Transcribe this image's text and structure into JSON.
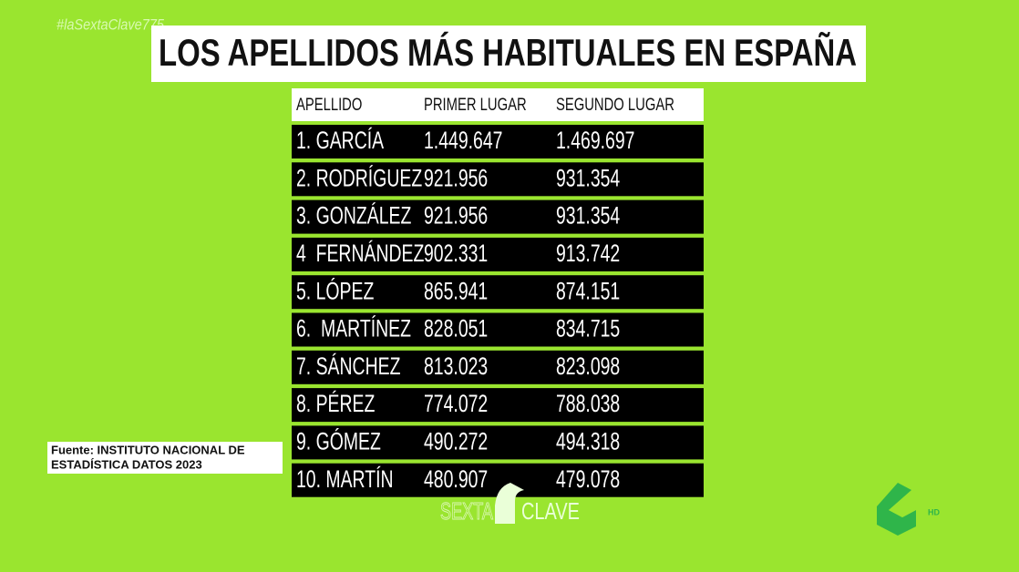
{
  "header": {
    "hashtag": "#laSextaClave775",
    "title": "LOS APELLIDOS MÁS HABITUALES EN ESPAÑA"
  },
  "table": {
    "columns": [
      "APELLIDO",
      "PRIMER LUGAR",
      "SEGUNDO LUGAR"
    ],
    "rows": [
      [
        "1. GARCÍA",
        "1.449.647",
        "1.469.697"
      ],
      [
        "2. RODRÍGUEZ",
        "921.956",
        "931.354"
      ],
      [
        "3. GONZÁLEZ",
        "921.956",
        "931.354"
      ],
      [
        "4  FERNÁNDEZ",
        "902.331",
        "913.742"
      ],
      [
        "5. LÓPEZ",
        "865.941",
        "874.151"
      ],
      [
        "6.  MARTÍNEZ",
        "828.051",
        "834.715"
      ],
      [
        "7. SÁNCHEZ",
        "813.023",
        "823.098"
      ],
      [
        "8. PÉREZ",
        "774.072",
        "788.038"
      ],
      [
        "9. GÓMEZ",
        "490.272",
        "494.318"
      ],
      [
        "10. MARTÍN",
        "480.907",
        "479.078"
      ]
    ]
  },
  "source": {
    "line1": "Fuente: INSTITUTO NACIONAL DE",
    "line2": "ESTADÍSTICA DATOS 2023"
  },
  "logos": {
    "program_a": "SEXTA",
    "program_b": "CLAVE",
    "channel": "HD"
  }
}
